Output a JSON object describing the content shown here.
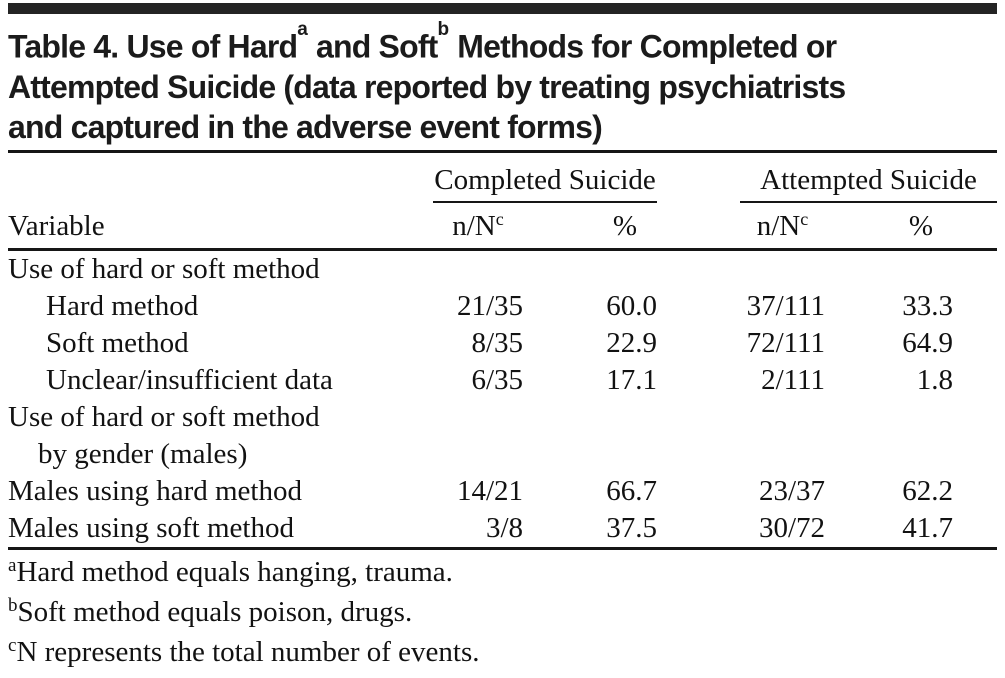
{
  "title": {
    "line1_pre": "Table 4. Use of Hard",
    "sup_a": "a",
    "line1_mid": " and Soft",
    "sup_b": "b",
    "line1_post": " Methods for Completed or",
    "line2": "Attempted Suicide (data reported by treating psychiatrists",
    "line3": "and captured in the adverse event forms)"
  },
  "header": {
    "variable": "Variable",
    "group_completed": "Completed Suicide",
    "group_attempted": "Attempted Suicide",
    "n_over_N": "n/N",
    "n_over_N_sup": "c",
    "percent": "%"
  },
  "rows": [
    {
      "label": "Use of hard or soft method",
      "completed_nN": "",
      "completed_pct": "",
      "attempted_nN": "",
      "attempted_pct": ""
    },
    {
      "label": "Hard method",
      "completed_nN": "21/35",
      "completed_pct": "60.0",
      "attempted_nN": "37/111",
      "attempted_pct": "33.3"
    },
    {
      "label": "Soft method",
      "completed_nN": "8/35",
      "completed_pct": "22.9",
      "attempted_nN": "72/111",
      "attempted_pct": "64.9"
    },
    {
      "label": "Unclear/insufficient data",
      "completed_nN": "6/35",
      "completed_pct": "17.1",
      "attempted_nN": "2/111",
      "attempted_pct": "1.8"
    },
    {
      "label": "Use of hard or soft method",
      "completed_nN": "",
      "completed_pct": "",
      "attempted_nN": "",
      "attempted_pct": ""
    },
    {
      "label": "by gender (males)",
      "completed_nN": "",
      "completed_pct": "",
      "attempted_nN": "",
      "attempted_pct": ""
    },
    {
      "label": "Males using hard method",
      "completed_nN": "14/21",
      "completed_pct": "66.7",
      "attempted_nN": "23/37",
      "attempted_pct": "62.2"
    },
    {
      "label": "Males using soft method",
      "completed_nN": "3/8",
      "completed_pct": "37.5",
      "attempted_nN": "30/72",
      "attempted_pct": "41.7"
    }
  ],
  "footnotes": [
    {
      "marker": "a",
      "text": "Hard method equals hanging, trauma."
    },
    {
      "marker": "b",
      "text": "Soft method equals poison, drugs."
    },
    {
      "marker": "c",
      "text": "N represents the total number of events."
    }
  ],
  "colors": {
    "background": "#ffffff",
    "text": "#121212",
    "rule": "#161616",
    "top_bar": "#242424"
  }
}
